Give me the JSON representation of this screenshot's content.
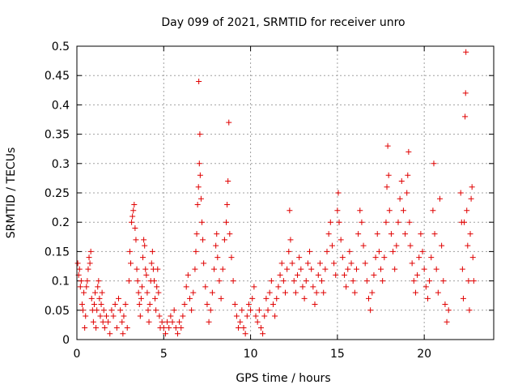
{
  "chart_data": {
    "type": "scatter",
    "title": "Day 099 of 2021, SRMTID for receiver unro",
    "xlabel": "GPS time / hours",
    "ylabel": "SRMTID / TECUs",
    "xlim": [
      0,
      24
    ],
    "ylim": [
      0,
      0.5
    ],
    "xticks": [
      0,
      5,
      10,
      15,
      20
    ],
    "xtick_labels": [
      "0",
      "5",
      "10",
      "15",
      "20"
    ],
    "yticks": [
      0,
      0.05,
      0.1,
      0.15,
      0.2,
      0.25,
      0.3,
      0.35,
      0.4,
      0.45,
      0.5
    ],
    "ytick_labels": [
      "0",
      "0.05",
      "0.1",
      "0.15",
      "0.2",
      "0.25",
      "0.3",
      "0.35",
      "0.4",
      "0.45",
      "0.5"
    ],
    "grid": true,
    "marker": "+",
    "color": "#e00000",
    "points": [
      [
        0.05,
        0.13
      ],
      [
        0.1,
        0.11
      ],
      [
        0.15,
        0.12
      ],
      [
        0.2,
        0.09
      ],
      [
        0.25,
        0.1
      ],
      [
        0.3,
        0.06
      ],
      [
        0.35,
        0.05
      ],
      [
        0.4,
        0.08
      ],
      [
        0.45,
        0.02
      ],
      [
        0.5,
        0.04
      ],
      [
        0.55,
        0.09
      ],
      [
        0.6,
        0.1
      ],
      [
        0.65,
        0.12
      ],
      [
        0.7,
        0.14
      ],
      [
        0.75,
        0.13
      ],
      [
        0.8,
        0.15
      ],
      [
        0.85,
        0.07
      ],
      [
        0.9,
        0.05
      ],
      [
        0.95,
        0.03
      ],
      [
        1.0,
        0.06
      ],
      [
        1.05,
        0.08
      ],
      [
        1.1,
        0.02
      ],
      [
        1.15,
        0.05
      ],
      [
        1.2,
        0.09
      ],
      [
        1.25,
        0.1
      ],
      [
        1.3,
        0.07
      ],
      [
        1.35,
        0.04
      ],
      [
        1.4,
        0.06
      ],
      [
        1.45,
        0.08
      ],
      [
        1.5,
        0.03
      ],
      [
        1.55,
        0.05
      ],
      [
        1.6,
        0.02
      ],
      [
        1.7,
        0.04
      ],
      [
        1.8,
        0.03
      ],
      [
        1.9,
        0.01
      ],
      [
        2.0,
        0.05
      ],
      [
        2.1,
        0.04
      ],
      [
        2.2,
        0.06
      ],
      [
        2.3,
        0.02
      ],
      [
        2.4,
        0.07
      ],
      [
        2.5,
        0.05
      ],
      [
        2.6,
        0.03
      ],
      [
        2.65,
        0.01
      ],
      [
        2.7,
        0.04
      ],
      [
        2.8,
        0.06
      ],
      [
        2.9,
        0.02
      ],
      [
        3.0,
        0.1
      ],
      [
        3.05,
        0.15
      ],
      [
        3.1,
        0.13
      ],
      [
        3.15,
        0.2
      ],
      [
        3.2,
        0.21
      ],
      [
        3.25,
        0.22
      ],
      [
        3.3,
        0.23
      ],
      [
        3.35,
        0.19
      ],
      [
        3.4,
        0.17
      ],
      [
        3.45,
        0.12
      ],
      [
        3.5,
        0.1
      ],
      [
        3.55,
        0.08
      ],
      [
        3.6,
        0.06
      ],
      [
        3.65,
        0.04
      ],
      [
        3.7,
        0.07
      ],
      [
        3.75,
        0.09
      ],
      [
        3.8,
        0.14
      ],
      [
        3.85,
        0.17
      ],
      [
        3.9,
        0.16
      ],
      [
        3.95,
        0.12
      ],
      [
        4.0,
        0.11
      ],
      [
        4.05,
        0.08
      ],
      [
        4.1,
        0.05
      ],
      [
        4.15,
        0.03
      ],
      [
        4.2,
        0.06
      ],
      [
        4.25,
        0.1
      ],
      [
        4.3,
        0.13
      ],
      [
        4.35,
        0.15
      ],
      [
        4.4,
        0.12
      ],
      [
        4.45,
        0.1
      ],
      [
        4.5,
        0.07
      ],
      [
        4.55,
        0.05
      ],
      [
        4.6,
        0.09
      ],
      [
        4.65,
        0.12
      ],
      [
        4.7,
        0.08
      ],
      [
        4.75,
        0.04
      ],
      [
        4.8,
        0.02
      ],
      [
        4.9,
        0.03
      ],
      [
        5.0,
        0.02
      ],
      [
        5.1,
        0.01
      ],
      [
        5.2,
        0.03
      ],
      [
        5.3,
        0.02
      ],
      [
        5.4,
        0.04
      ],
      [
        5.5,
        0.03
      ],
      [
        5.6,
        0.05
      ],
      [
        5.7,
        0.02
      ],
      [
        5.8,
        0.01
      ],
      [
        5.9,
        0.03
      ],
      [
        6.0,
        0.02
      ],
      [
        6.1,
        0.04
      ],
      [
        6.2,
        0.06
      ],
      [
        6.3,
        0.09
      ],
      [
        6.4,
        0.11
      ],
      [
        6.5,
        0.07
      ],
      [
        6.6,
        0.05
      ],
      [
        6.7,
        0.08
      ],
      [
        6.8,
        0.12
      ],
      [
        6.85,
        0.15
      ],
      [
        6.9,
        0.18
      ],
      [
        6.95,
        0.23
      ],
      [
        7.0,
        0.26
      ],
      [
        7.02,
        0.44
      ],
      [
        7.05,
        0.3
      ],
      [
        7.08,
        0.35
      ],
      [
        7.1,
        0.28
      ],
      [
        7.15,
        0.24
      ],
      [
        7.2,
        0.2
      ],
      [
        7.25,
        0.17
      ],
      [
        7.3,
        0.13
      ],
      [
        7.4,
        0.09
      ],
      [
        7.5,
        0.06
      ],
      [
        7.6,
        0.03
      ],
      [
        7.7,
        0.05
      ],
      [
        7.8,
        0.08
      ],
      [
        7.9,
        0.12
      ],
      [
        8.0,
        0.16
      ],
      [
        8.05,
        0.18
      ],
      [
        8.1,
        0.14
      ],
      [
        8.2,
        0.1
      ],
      [
        8.3,
        0.07
      ],
      [
        8.4,
        0.12
      ],
      [
        8.5,
        0.17
      ],
      [
        8.6,
        0.2
      ],
      [
        8.65,
        0.23
      ],
      [
        8.7,
        0.27
      ],
      [
        8.75,
        0.37
      ],
      [
        8.8,
        0.18
      ],
      [
        8.9,
        0.14
      ],
      [
        9.0,
        0.1
      ],
      [
        9.1,
        0.06
      ],
      [
        9.2,
        0.04
      ],
      [
        9.3,
        0.02
      ],
      [
        9.4,
        0.03
      ],
      [
        9.5,
        0.05
      ],
      [
        9.6,
        0.02
      ],
      [
        9.7,
        0.01
      ],
      [
        9.8,
        0.04
      ],
      [
        9.9,
        0.06
      ],
      [
        10.0,
        0.05
      ],
      [
        10.1,
        0.07
      ],
      [
        10.2,
        0.09
      ],
      [
        10.3,
        0.04
      ],
      [
        10.4,
        0.03
      ],
      [
        10.5,
        0.05
      ],
      [
        10.6,
        0.02
      ],
      [
        10.7,
        0.01
      ],
      [
        10.8,
        0.04
      ],
      [
        10.9,
        0.07
      ],
      [
        11.0,
        0.05
      ],
      [
        11.1,
        0.08
      ],
      [
        11.2,
        0.1
      ],
      [
        11.3,
        0.06
      ],
      [
        11.4,
        0.04
      ],
      [
        11.5,
        0.07
      ],
      [
        11.6,
        0.09
      ],
      [
        11.7,
        0.11
      ],
      [
        11.8,
        0.13
      ],
      [
        11.9,
        0.1
      ],
      [
        12.0,
        0.08
      ],
      [
        12.1,
        0.12
      ],
      [
        12.2,
        0.15
      ],
      [
        12.25,
        0.22
      ],
      [
        12.3,
        0.17
      ],
      [
        12.4,
        0.13
      ],
      [
        12.5,
        0.1
      ],
      [
        12.6,
        0.08
      ],
      [
        12.7,
        0.11
      ],
      [
        12.8,
        0.14
      ],
      [
        12.9,
        0.12
      ],
      [
        13.0,
        0.09
      ],
      [
        13.1,
        0.07
      ],
      [
        13.2,
        0.1
      ],
      [
        13.3,
        0.13
      ],
      [
        13.4,
        0.15
      ],
      [
        13.5,
        0.12
      ],
      [
        13.6,
        0.09
      ],
      [
        13.7,
        0.06
      ],
      [
        13.8,
        0.08
      ],
      [
        13.9,
        0.11
      ],
      [
        14.0,
        0.13
      ],
      [
        14.1,
        0.1
      ],
      [
        14.2,
        0.08
      ],
      [
        14.3,
        0.12
      ],
      [
        14.4,
        0.15
      ],
      [
        14.5,
        0.18
      ],
      [
        14.6,
        0.2
      ],
      [
        14.7,
        0.16
      ],
      [
        14.8,
        0.13
      ],
      [
        14.9,
        0.11
      ],
      [
        15.0,
        0.22
      ],
      [
        15.05,
        0.25
      ],
      [
        15.1,
        0.2
      ],
      [
        15.2,
        0.17
      ],
      [
        15.3,
        0.14
      ],
      [
        15.4,
        0.11
      ],
      [
        15.5,
        0.09
      ],
      [
        15.6,
        0.12
      ],
      [
        15.7,
        0.15
      ],
      [
        15.8,
        0.13
      ],
      [
        15.9,
        0.1
      ],
      [
        16.0,
        0.08
      ],
      [
        16.1,
        0.12
      ],
      [
        16.2,
        0.18
      ],
      [
        16.3,
        0.22
      ],
      [
        16.4,
        0.2
      ],
      [
        16.5,
        0.16
      ],
      [
        16.6,
        0.13
      ],
      [
        16.7,
        0.1
      ],
      [
        16.8,
        0.07
      ],
      [
        16.9,
        0.05
      ],
      [
        17.0,
        0.08
      ],
      [
        17.1,
        0.11
      ],
      [
        17.2,
        0.14
      ],
      [
        17.3,
        0.18
      ],
      [
        17.4,
        0.15
      ],
      [
        17.5,
        0.12
      ],
      [
        17.6,
        0.1
      ],
      [
        17.7,
        0.14
      ],
      [
        17.8,
        0.2
      ],
      [
        17.85,
        0.26
      ],
      [
        17.9,
        0.33
      ],
      [
        17.95,
        0.28
      ],
      [
        18.0,
        0.22
      ],
      [
        18.1,
        0.18
      ],
      [
        18.2,
        0.15
      ],
      [
        18.3,
        0.12
      ],
      [
        18.4,
        0.16
      ],
      [
        18.5,
        0.2
      ],
      [
        18.6,
        0.24
      ],
      [
        18.7,
        0.27
      ],
      [
        18.8,
        0.22
      ],
      [
        18.9,
        0.18
      ],
      [
        19.0,
        0.25
      ],
      [
        19.05,
        0.28
      ],
      [
        19.1,
        0.32
      ],
      [
        19.15,
        0.2
      ],
      [
        19.2,
        0.16
      ],
      [
        19.3,
        0.13
      ],
      [
        19.4,
        0.1
      ],
      [
        19.5,
        0.08
      ],
      [
        19.6,
        0.11
      ],
      [
        19.7,
        0.14
      ],
      [
        19.8,
        0.18
      ],
      [
        19.9,
        0.15
      ],
      [
        20.0,
        0.12
      ],
      [
        20.1,
        0.09
      ],
      [
        20.2,
        0.07
      ],
      [
        20.3,
        0.1
      ],
      [
        20.4,
        0.14
      ],
      [
        20.5,
        0.22
      ],
      [
        20.55,
        0.3
      ],
      [
        20.6,
        0.18
      ],
      [
        20.7,
        0.12
      ],
      [
        20.8,
        0.08
      ],
      [
        20.9,
        0.24
      ],
      [
        21.0,
        0.16
      ],
      [
        21.1,
        0.1
      ],
      [
        21.2,
        0.06
      ],
      [
        21.3,
        0.03
      ],
      [
        21.4,
        0.05
      ],
      [
        22.1,
        0.25
      ],
      [
        22.15,
        0.2
      ],
      [
        22.2,
        0.12
      ],
      [
        22.25,
        0.07
      ],
      [
        22.3,
        0.2
      ],
      [
        22.35,
        0.38
      ],
      [
        22.38,
        0.42
      ],
      [
        22.4,
        0.49
      ],
      [
        22.45,
        0.22
      ],
      [
        22.5,
        0.16
      ],
      [
        22.55,
        0.1
      ],
      [
        22.6,
        0.05
      ],
      [
        22.65,
        0.18
      ],
      [
        22.7,
        0.24
      ],
      [
        22.75,
        0.26
      ],
      [
        22.8,
        0.14
      ],
      [
        22.85,
        0.1
      ]
    ]
  }
}
